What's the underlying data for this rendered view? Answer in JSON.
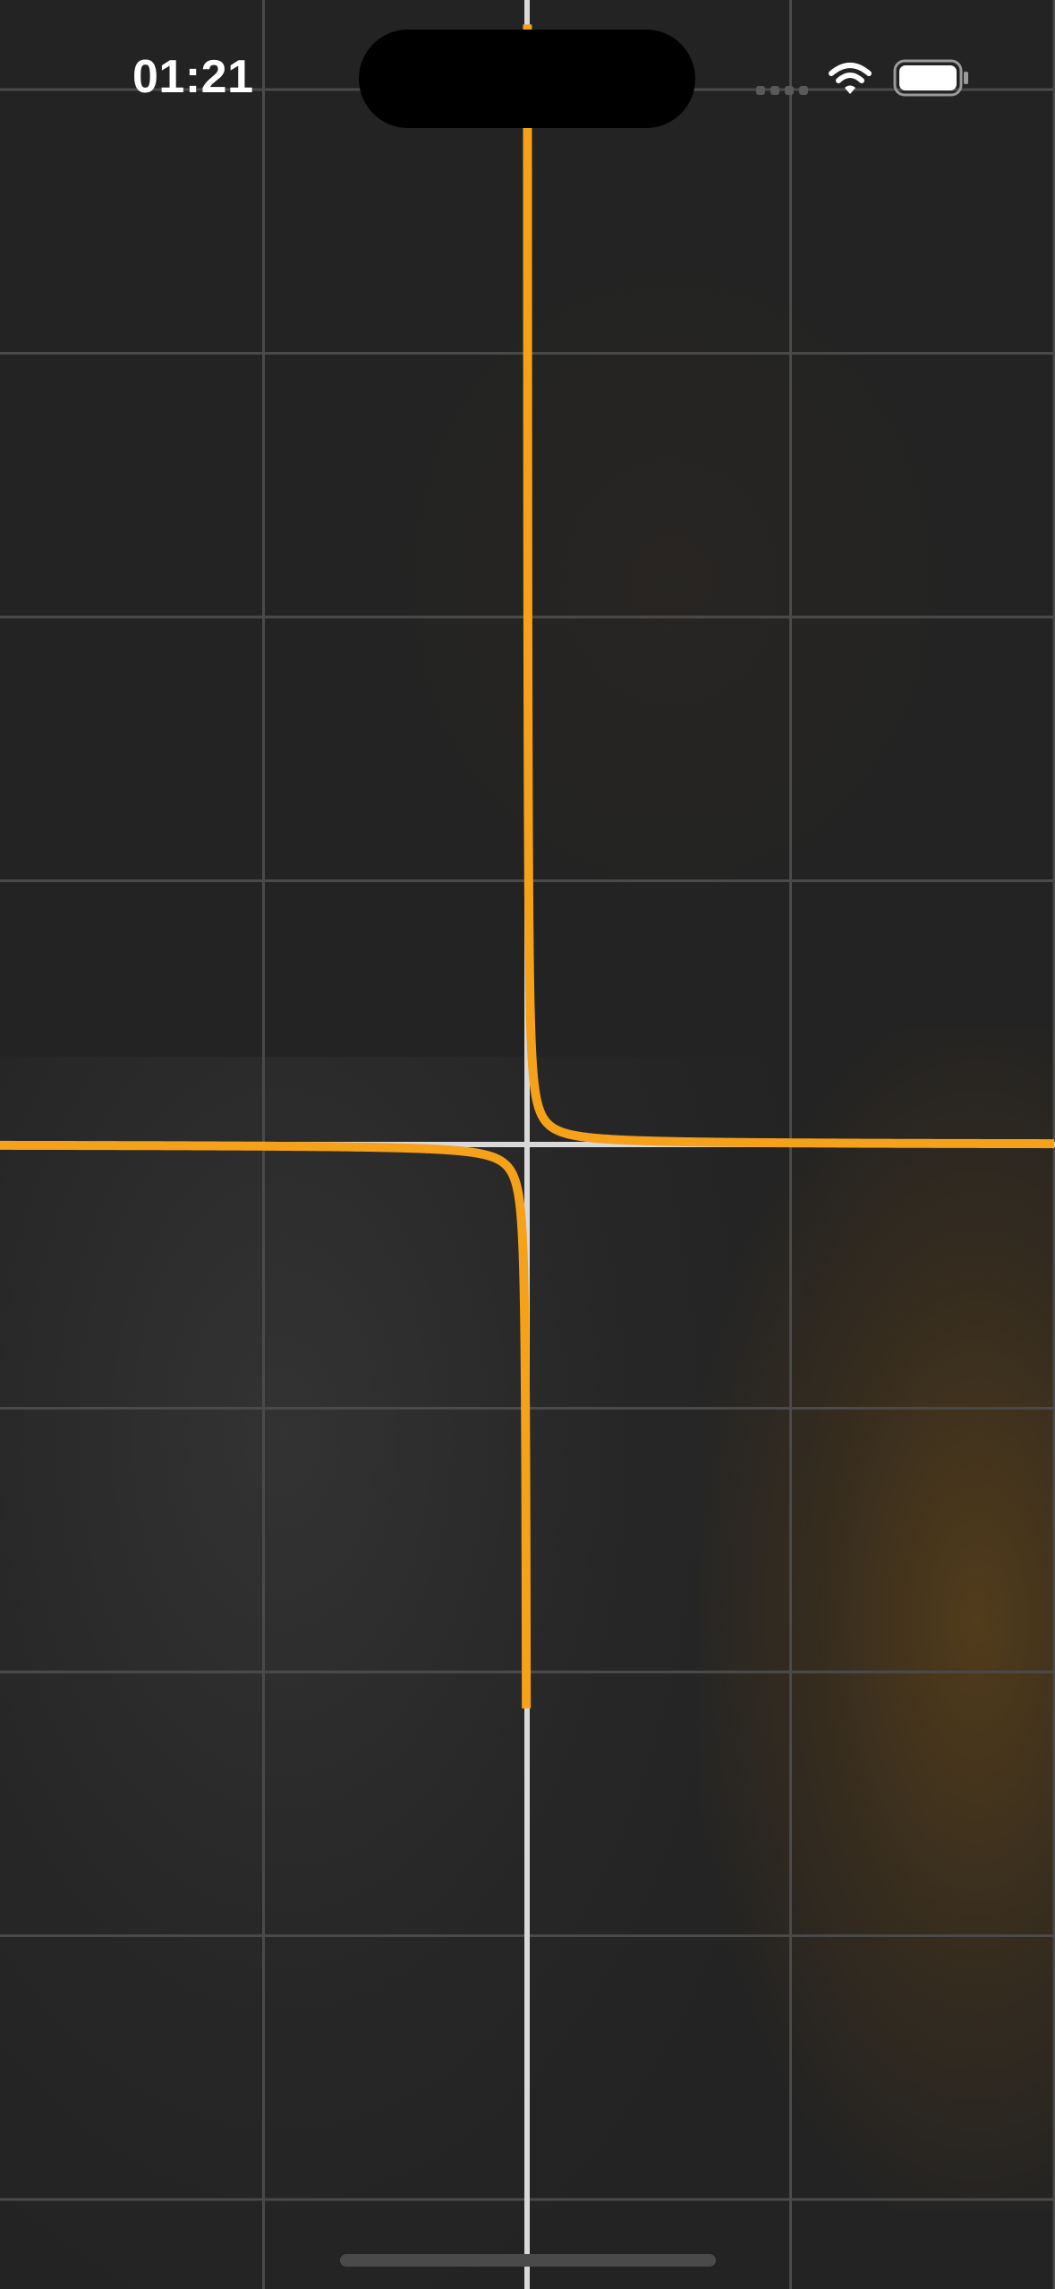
{
  "status_bar": {
    "time": "01:21",
    "icons": [
      "cellular-signal-icon",
      "wifi-icon",
      "battery-icon"
    ]
  },
  "colors": {
    "background": "#232323",
    "grid_line": "#4a4a4a",
    "axis": "#d9d9d9",
    "curve": "#f5a11a",
    "glow_orange": "#4a3518"
  },
  "graph": {
    "function_kind": "reciprocal",
    "x_range": [
      -2,
      2
    ],
    "y_range": [
      -4,
      4.3
    ],
    "grid": true,
    "grid_step": 1
  },
  "home_indicator": {
    "visible": true
  }
}
